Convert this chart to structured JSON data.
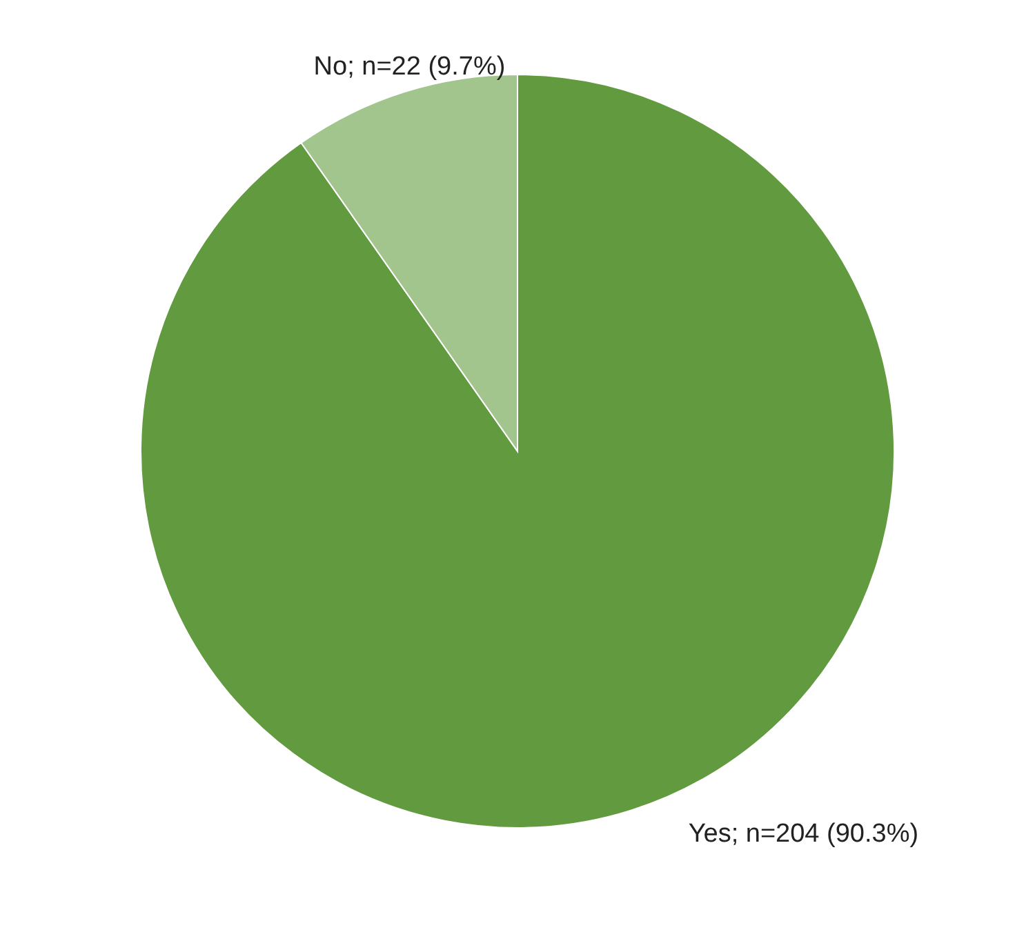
{
  "chart_data": {
    "type": "pie",
    "categories": [
      "Yes; n=204 (90.3%)",
      "No; n=22 (9.7%)"
    ],
    "values": [
      204,
      22
    ],
    "colors": [
      "#629a3f",
      "#a2c58e"
    ]
  }
}
